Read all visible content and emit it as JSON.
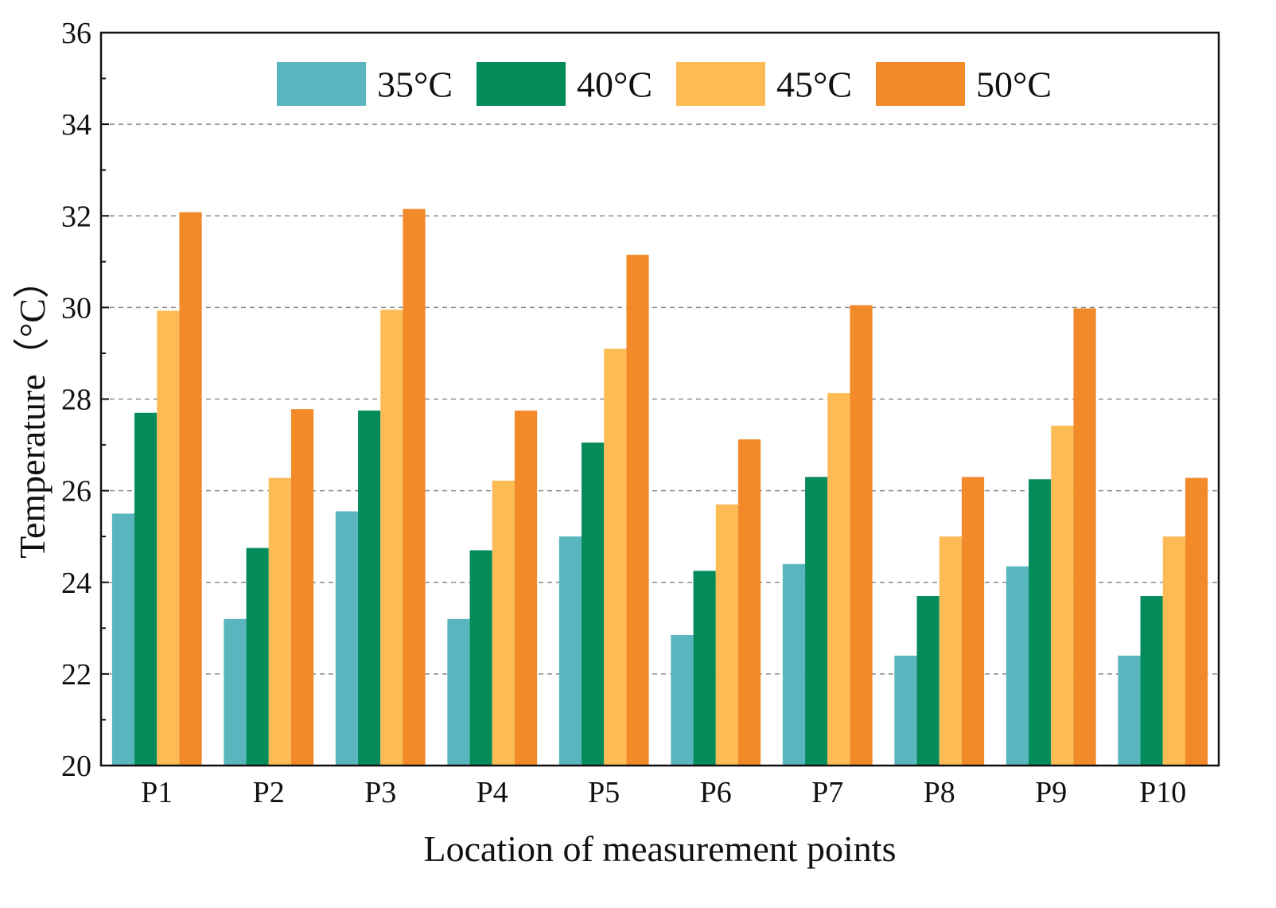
{
  "chart_data": {
    "type": "bar",
    "title": "",
    "xlabel": "Location of measurement points",
    "ylabel": "Temperature（°C）",
    "ylim": [
      20,
      36
    ],
    "yticks": [
      20,
      22,
      24,
      26,
      28,
      30,
      32,
      34,
      36
    ],
    "grid": "horizontal dashed",
    "legend_position": "top",
    "categories": [
      "P1",
      "P2",
      "P3",
      "P4",
      "P5",
      "P6",
      "P7",
      "P8",
      "P9",
      "P10"
    ],
    "series": [
      {
        "name": "35°C",
        "color": "#5ab6be",
        "values": [
          25.5,
          23.2,
          25.55,
          23.2,
          25.0,
          22.85,
          24.4,
          22.4,
          24.35,
          22.4
        ]
      },
      {
        "name": "40°C",
        "color": "#048b5a",
        "values": [
          27.7,
          24.75,
          27.75,
          24.7,
          27.05,
          24.25,
          26.3,
          23.7,
          26.25,
          23.7
        ]
      },
      {
        "name": "45°C",
        "color": "#fdbb55",
        "values": [
          29.93,
          26.28,
          29.95,
          26.22,
          29.1,
          25.7,
          28.13,
          25.0,
          27.42,
          25.0
        ]
      },
      {
        "name": "50°C",
        "color": "#f28a29",
        "values": [
          32.08,
          27.78,
          32.15,
          27.75,
          31.15,
          27.12,
          30.05,
          26.3,
          29.98,
          26.28
        ]
      }
    ]
  }
}
